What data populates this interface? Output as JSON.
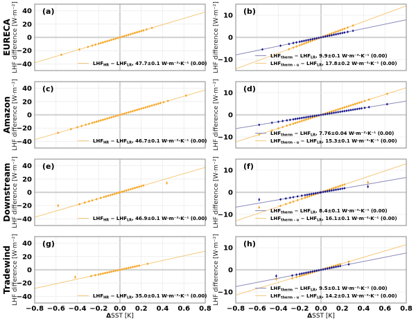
{
  "chart_data": [
    {
      "id": "a",
      "type": "scatter",
      "panel_label": "(a)",
      "row_label": "EURECA",
      "xlabel": "",
      "ylabel": "LHF difference [W·m⁻²]",
      "xlim": [
        -0.8,
        0.8
      ],
      "ylim": [
        -50,
        50
      ],
      "xticks": [
        -0.8,
        -0.6,
        -0.4,
        -0.2,
        0.0,
        0.2,
        0.4,
        0.6,
        0.8
      ],
      "yticks": [
        -40,
        -20,
        0,
        20,
        40
      ],
      "grid": true,
      "legend_position": "lower-right",
      "series": [
        {
          "name": "LHF_HR − LHF_LR",
          "legend": "LHFHR − LHFLR, 47.7±0.1 W·m⁻²·K⁻¹ (0.00)",
          "legend_main": "LHF",
          "sub1": "HR",
          "mid": " − LHF",
          "sub2": "LR",
          "tail": ", 47.7±0.1 W·m⁻²·K⁻¹ (0.00)",
          "color": "#f5a623",
          "slope": 47.7,
          "x": [
            -0.55,
            -0.38,
            -0.3,
            -0.26,
            -0.23,
            -0.2,
            -0.18,
            -0.16,
            -0.14,
            -0.12,
            -0.1,
            -0.08,
            -0.06,
            -0.04,
            -0.02,
            0.0,
            0.02,
            0.04,
            0.06,
            0.08,
            0.1,
            0.12,
            0.14,
            0.16,
            0.18,
            0.2,
            0.22,
            0.25,
            0.3
          ]
        }
      ]
    },
    {
      "id": "b",
      "type": "scatter",
      "panel_label": "(b)",
      "row_label": "",
      "xlabel": "",
      "ylabel": "LHF difference [W·m⁻²]",
      "xlim": [
        -0.8,
        0.8
      ],
      "ylim": [
        -15,
        15
      ],
      "xticks": [
        -0.8,
        -0.6,
        -0.4,
        -0.2,
        0.0,
        0.2,
        0.4,
        0.6,
        0.8
      ],
      "yticks": [
        -10,
        0,
        10
      ],
      "grid": true,
      "legend_position": "lower-right",
      "series": [
        {
          "name": "LHF_therm − LHF_LR",
          "legend_main": "LHF",
          "sub1": "therm",
          "mid": " − LHF",
          "sub2": "LR",
          "tail": ", 9.9±0.1 W·m⁻²·K⁻¹ (0.00)",
          "color": "#1a1a8c",
          "line_color": "#8888bb",
          "slope": 9.9,
          "x": [
            -0.55,
            -0.38,
            -0.3,
            -0.26,
            -0.23,
            -0.2,
            -0.18,
            -0.16,
            -0.14,
            -0.12,
            -0.1,
            -0.08,
            -0.06,
            -0.04,
            -0.02,
            0.0,
            0.02,
            0.04,
            0.06,
            0.08,
            0.1,
            0.12,
            0.14,
            0.16,
            0.18,
            0.2,
            0.22,
            0.25,
            0.3
          ]
        },
        {
          "name": "LHF_therm-u − LHF_LR",
          "legend_main": "LHF",
          "sub1": "therm - u",
          "mid": " − LHF",
          "sub2": "LR",
          "tail": ", 17.8±0.2 W·m⁻²·K⁻¹ (0.00)",
          "color": "#f5a623",
          "line_color": "#f5c87a",
          "slope": 17.8,
          "x": [
            -0.3,
            -0.26,
            -0.23,
            -0.2,
            -0.18,
            -0.16,
            -0.14,
            -0.12,
            -0.1,
            -0.08,
            -0.06,
            -0.04,
            -0.02,
            0.0,
            0.02,
            0.04,
            0.06,
            0.08,
            0.1,
            0.12,
            0.14,
            0.16,
            0.18,
            0.2,
            0.22,
            0.25,
            0.3
          ]
        }
      ]
    },
    {
      "id": "c",
      "type": "scatter",
      "panel_label": "(c)",
      "row_label": "Amazon",
      "xlabel": "",
      "ylabel": "LHF difference [W·m⁻²]",
      "xlim": [
        -0.8,
        0.8
      ],
      "ylim": [
        -50,
        50
      ],
      "xticks": [
        -0.8,
        -0.6,
        -0.4,
        -0.2,
        0.0,
        0.2,
        0.4,
        0.6,
        0.8
      ],
      "yticks": [
        -40,
        -20,
        0,
        20,
        40
      ],
      "grid": true,
      "legend_position": "lower-right",
      "series": [
        {
          "name": "LHF_HR − LHF_LR",
          "legend_main": "LHF",
          "sub1": "HR",
          "mid": " − LHF",
          "sub2": "LR",
          "tail": ", 46.7±0.1 W·m⁻²·K⁻¹ (0.00)",
          "color": "#f5a623",
          "slope": 46.7,
          "x": [
            -0.58,
            -0.46,
            -0.4,
            -0.36,
            -0.32,
            -0.29,
            -0.26,
            -0.24,
            -0.22,
            -0.2,
            -0.18,
            -0.16,
            -0.14,
            -0.12,
            -0.1,
            -0.08,
            -0.06,
            -0.04,
            -0.02,
            0.0,
            0.02,
            0.04,
            0.06,
            0.08,
            0.1,
            0.12,
            0.14,
            0.16,
            0.18,
            0.2,
            0.22,
            0.24,
            0.26,
            0.28,
            0.3,
            0.32,
            0.34,
            0.36,
            0.38,
            0.41,
            0.45,
            0.62
          ]
        }
      ]
    },
    {
      "id": "d",
      "type": "scatter",
      "panel_label": "(d)",
      "row_label": "",
      "xlabel": "",
      "ylabel": "LHF difference [W·m⁻²]",
      "xlim": [
        -0.8,
        0.8
      ],
      "ylim": [
        -15,
        15
      ],
      "xticks": [
        -0.8,
        -0.6,
        -0.4,
        -0.2,
        0.0,
        0.2,
        0.4,
        0.6,
        0.8
      ],
      "yticks": [
        -10,
        0,
        10
      ],
      "grid": true,
      "legend_position": "lower-right",
      "series": [
        {
          "name": "LHF_therm − LHF_LR",
          "legend_main": "LHF",
          "sub1": "therm",
          "mid": " − LHF",
          "sub2": "LR",
          "tail": ", 7.76±0.04 W·m⁻²·K⁻¹ (0.00)",
          "color": "#1a1a8c",
          "line_color": "#8888bb",
          "slope": 7.76,
          "x": [
            -0.58,
            -0.46,
            -0.4,
            -0.36,
            -0.32,
            -0.29,
            -0.26,
            -0.24,
            -0.22,
            -0.2,
            -0.18,
            -0.16,
            -0.14,
            -0.12,
            -0.1,
            -0.08,
            -0.06,
            -0.04,
            -0.02,
            0.0,
            0.02,
            0.04,
            0.06,
            0.08,
            0.1,
            0.12,
            0.14,
            0.16,
            0.18,
            0.2,
            0.22,
            0.24,
            0.26,
            0.28,
            0.3,
            0.32,
            0.34,
            0.36,
            0.38,
            0.41,
            0.45,
            0.62
          ]
        },
        {
          "name": "LHF_therm-u − LHF_LR",
          "legend_main": "LHF",
          "sub1": "therm - u",
          "mid": " − LHF",
          "sub2": "LR",
          "tail": ", 15.3±0.1 W·m⁻²·K⁻¹ (0.00)",
          "color": "#f5a623",
          "line_color": "#f5c87a",
          "slope": 15.3,
          "x": [
            -0.58,
            -0.46,
            -0.4,
            -0.36,
            -0.32,
            -0.29,
            -0.26,
            -0.24,
            -0.22,
            -0.2,
            -0.18,
            -0.16,
            -0.14,
            -0.12,
            -0.1,
            -0.08,
            -0.06,
            -0.04,
            -0.02,
            0.0,
            0.02,
            0.04,
            0.06,
            0.08,
            0.1,
            0.12,
            0.14,
            0.16,
            0.18,
            0.2,
            0.22,
            0.24,
            0.26,
            0.28,
            0.3,
            0.32,
            0.34,
            0.36,
            0.38,
            0.41,
            0.45,
            0.62
          ]
        }
      ]
    },
    {
      "id": "e",
      "type": "scatter",
      "panel_label": "(e)",
      "row_label": "Downstream",
      "xlabel": "",
      "ylabel": "LHF difference [W·m⁻²]",
      "xlim": [
        -0.8,
        0.8
      ],
      "ylim": [
        -50,
        50
      ],
      "xticks": [
        -0.8,
        -0.6,
        -0.4,
        -0.2,
        0.0,
        0.2,
        0.4,
        0.6,
        0.8
      ],
      "yticks": [
        -40,
        -20,
        0,
        20,
        40
      ],
      "grid": true,
      "legend_position": "lower-right",
      "series": [
        {
          "name": "LHF_HR − LHF_LR",
          "legend_main": "LHF",
          "sub1": "HR",
          "mid": " − LHF",
          "sub2": "LR",
          "tail": ", 46.9±0.1 W·m⁻²·K⁻¹ (0.00)",
          "color": "#f5a623",
          "slope": 46.9,
          "x": [
            -0.38,
            -0.33,
            -0.29,
            -0.26,
            -0.22,
            -0.18,
            -0.15,
            -0.13,
            -0.11,
            -0.09,
            -0.07,
            -0.05,
            -0.03,
            -0.01,
            0.0,
            0.02,
            0.04,
            0.06,
            0.08,
            0.1,
            0.12,
            0.14,
            0.16,
            0.18,
            0.2,
            0.22
          ],
          "outliers": [
            {
              "x": -0.58,
              "y": -20
            },
            {
              "x": 0.44,
              "y": 14
            }
          ]
        }
      ]
    },
    {
      "id": "f",
      "type": "scatter",
      "panel_label": "(f)",
      "row_label": "",
      "xlabel": "",
      "ylabel": "LHF difference [W·m⁻²]",
      "xlim": [
        -0.8,
        0.8
      ],
      "ylim": [
        -15,
        15
      ],
      "xticks": [
        -0.8,
        -0.6,
        -0.4,
        -0.2,
        0.0,
        0.2,
        0.4,
        0.6,
        0.8
      ],
      "yticks": [
        -10,
        0,
        10
      ],
      "grid": true,
      "legend_position": "lower-right",
      "series": [
        {
          "name": "LHF_therm − LHF_LR",
          "legend_main": "LHF",
          "sub1": "therm",
          "mid": " − LHF",
          "sub2": "LR",
          "tail": ", 8.4±0.1 W·m⁻²·K⁻¹ (0.00)",
          "color": "#1a1a8c",
          "line_color": "#8888bb",
          "slope": 8.4,
          "x": [
            -0.38,
            -0.33,
            -0.29,
            -0.26,
            -0.22,
            -0.18,
            -0.15,
            -0.13,
            -0.11,
            -0.09,
            -0.07,
            -0.05,
            -0.03,
            -0.01,
            0.0,
            0.02,
            0.04,
            0.06,
            0.08,
            0.1,
            0.12,
            0.14,
            0.16,
            0.18,
            0.2,
            0.22
          ],
          "outliers": [
            {
              "x": -0.58,
              "y": -3.3
            },
            {
              "x": 0.44,
              "y": 2.6
            }
          ]
        },
        {
          "name": "LHF_therm-u − LHF_LR",
          "legend_main": "LHF",
          "sub1": "therm - u",
          "mid": " − LHF",
          "sub2": "LR",
          "tail": ", 16.1±0.1 W·m⁻²·K⁻¹ (0.00)",
          "color": "#f5a623",
          "line_color": "#f5c87a",
          "slope": 16.1,
          "x": [
            -0.38,
            -0.33,
            -0.29,
            -0.26,
            -0.22,
            -0.18,
            -0.15,
            -0.13,
            -0.11,
            -0.09,
            -0.07,
            -0.05,
            -0.03,
            -0.01,
            0.0,
            0.02,
            0.04,
            0.06,
            0.08,
            0.1,
            0.12,
            0.14,
            0.16,
            0.18,
            0.2,
            0.22
          ],
          "outliers": [
            {
              "x": -0.58,
              "y": -6.8
            },
            {
              "x": 0.44,
              "y": 4.5
            }
          ]
        }
      ]
    },
    {
      "id": "g",
      "type": "scatter",
      "panel_label": "(g)",
      "row_label": "Tradewind",
      "xlabel": "ΔSST [K]",
      "ylabel": "LHF difference [W·m⁻²]",
      "xlim": [
        -0.8,
        0.8
      ],
      "ylim": [
        -50,
        50
      ],
      "xticks": [
        -0.8,
        -0.6,
        -0.4,
        -0.2,
        0.0,
        0.2,
        0.4,
        0.6,
        0.8
      ],
      "yticks": [
        -40,
        -20,
        0,
        20,
        40
      ],
      "xticklabels": [
        "−0.8",
        "−0.6",
        "−0.4",
        "−0.2",
        "0.0",
        "0.2",
        "0.4",
        "0.6",
        "0.8"
      ],
      "grid": true,
      "legend_position": "lower-right",
      "series": [
        {
          "name": "LHF_HR − LHF_LR",
          "legend_main": "LHF",
          "sub1": "HR",
          "mid": " − LHF",
          "sub2": "LR",
          "tail": ", 35.0±0.1 W·m⁻²·K⁻¹ (0.00)",
          "color": "#f5a623",
          "slope": 35.0,
          "x": [
            -0.27,
            -0.23,
            -0.2,
            -0.18,
            -0.16,
            -0.14,
            -0.12,
            -0.1,
            -0.08,
            -0.06,
            -0.04,
            -0.02,
            0.0,
            0.02,
            0.04,
            0.06,
            0.08,
            0.1,
            0.12,
            0.14,
            0.16,
            0.18,
            0.26
          ],
          "outliers": [
            {
              "x": -0.42,
              "y": -11
            }
          ]
        }
      ]
    },
    {
      "id": "h",
      "type": "scatter",
      "panel_label": "(h)",
      "row_label": "",
      "xlabel": "ΔSST [K]",
      "ylabel": "LHF difference [W·m⁻²]",
      "xlim": [
        -0.8,
        0.8
      ],
      "ylim": [
        -15,
        15
      ],
      "xticks": [
        -0.8,
        -0.6,
        -0.4,
        -0.2,
        0.0,
        0.2,
        0.4,
        0.6,
        0.8
      ],
      "yticks": [
        -10,
        0,
        10
      ],
      "xticklabels": [
        "−0.8",
        "−0.6",
        "−0.4",
        "−0.2",
        "0.0",
        "0.2",
        "0.4",
        "0.6",
        "0.8"
      ],
      "grid": true,
      "legend_position": "lower-right",
      "series": [
        {
          "name": "LHF_therm − LHF_LR",
          "legend_main": "LHF",
          "sub1": "therm",
          "mid": " − LHF",
          "sub2": "LR",
          "tail": ", 9.5±0.1 W·m⁻²·K⁻¹ (0.00)",
          "color": "#1a1a8c",
          "line_color": "#8888bb",
          "slope": 9.5,
          "x": [
            -0.27,
            -0.23,
            -0.2,
            -0.18,
            -0.16,
            -0.14,
            -0.12,
            -0.1,
            -0.08,
            -0.06,
            -0.04,
            -0.02,
            0.0,
            0.02,
            0.04,
            0.06,
            0.08,
            0.1,
            0.12,
            0.14,
            0.16,
            0.18,
            0.26
          ],
          "outliers": [
            {
              "x": -0.42,
              "y": -2.8
            }
          ]
        },
        {
          "name": "LHF_therm-u − LHF_LR",
          "legend_main": "LHF",
          "sub1": "therm - u",
          "mid": " − LHF",
          "sub2": "LR",
          "tail": ", 14.2±0.1 W·m⁻²·K⁻¹ (0.00)",
          "color": "#f5a623",
          "line_color": "#f5c87a",
          "slope": 14.2,
          "x": [
            -0.27,
            -0.23,
            -0.2,
            -0.18,
            -0.16,
            -0.14,
            -0.12,
            -0.1,
            -0.08,
            -0.06,
            -0.04,
            -0.02,
            0.0,
            0.02,
            0.04,
            0.06,
            0.08,
            0.1,
            0.12,
            0.14,
            0.16,
            0.18,
            0.26
          ],
          "outliers": [
            {
              "x": -0.42,
              "y": -4.2
            }
          ]
        }
      ]
    }
  ]
}
